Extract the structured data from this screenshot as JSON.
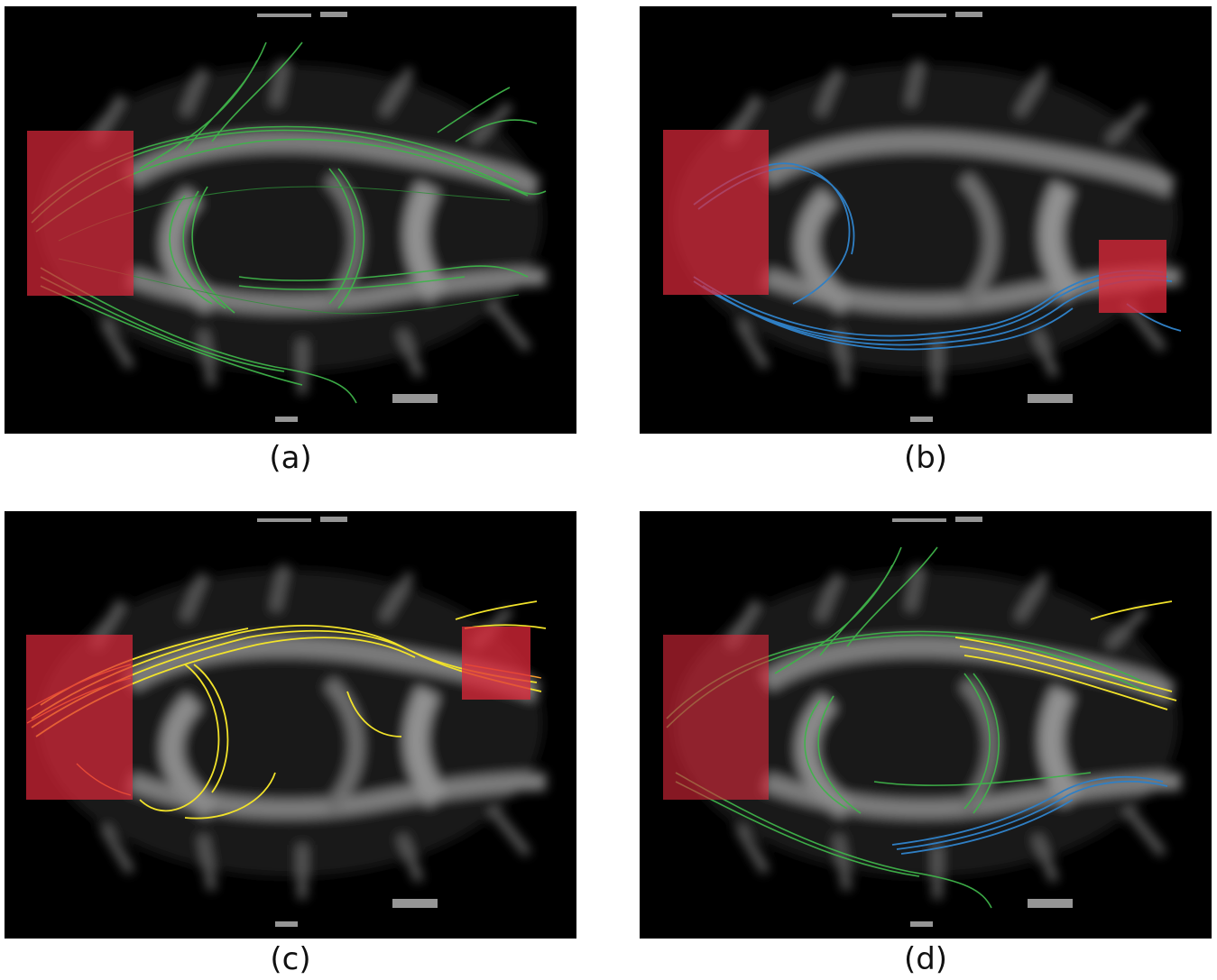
{
  "panels": [
    {
      "id": "a",
      "label": "(a)"
    },
    {
      "id": "b",
      "label": "(b)"
    },
    {
      "id": "c",
      "label": "(c)"
    },
    {
      "id": "d",
      "label": "(d)"
    }
  ],
  "colors": {
    "roi": "#e0283a",
    "tract_green": "#3fb44a",
    "tract_blue": "#2f7fc4",
    "tract_yellow": "#f2e32a",
    "background_brain": "#8a8a8a"
  }
}
